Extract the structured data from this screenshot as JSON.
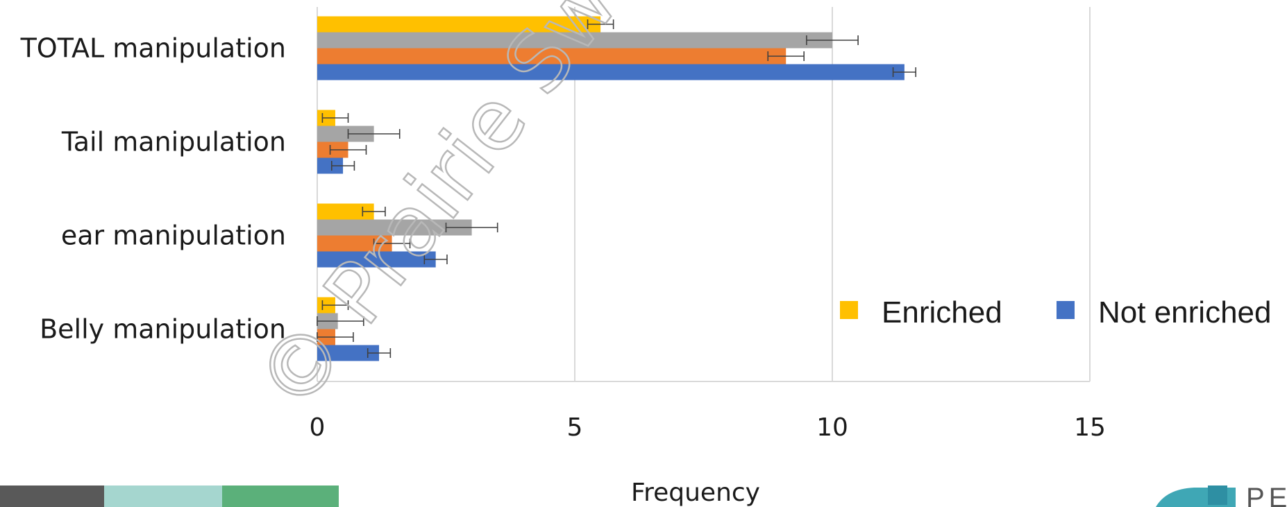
{
  "chart_data": {
    "type": "bar",
    "orientation": "horizontal",
    "categories": [
      "TOTAL manipulation",
      "Tail manipulation",
      "ear manipulation",
      "Belly manipulation"
    ],
    "series": [
      {
        "name": "Enriched",
        "color": "#FFC000",
        "values": [
          5.5,
          0.35,
          1.1,
          0.35
        ],
        "errors": [
          0.25,
          0.25,
          0.22,
          0.25
        ]
      },
      {
        "color": "#A5A5A5",
        "values": [
          10.0,
          1.1,
          3.0,
          0.4
        ],
        "errors": [
          0.5,
          0.5,
          0.5,
          0.5
        ]
      },
      {
        "color": "#ED7D31",
        "values": [
          9.1,
          0.6,
          1.45,
          0.35
        ],
        "errors": [
          0.35,
          0.35,
          0.35,
          0.35
        ]
      },
      {
        "name": "Not enriched",
        "color": "#4472C4",
        "values": [
          11.4,
          0.5,
          2.3,
          1.2
        ],
        "errors": [
          0.22,
          0.22,
          0.22,
          0.22
        ]
      }
    ],
    "xlim": [
      0,
      15
    ],
    "xticks": [
      "0",
      "5",
      "10",
      "15"
    ],
    "xlabel": "Frequency",
    "grid": true,
    "legend": {
      "placement": "bottom-right"
    }
  },
  "watermark": "© Prairie Swine C",
  "logo": {
    "text": "PE"
  },
  "footer_band_colors": [
    "#595959",
    "#A5D6CF",
    "#5BB07A"
  ]
}
